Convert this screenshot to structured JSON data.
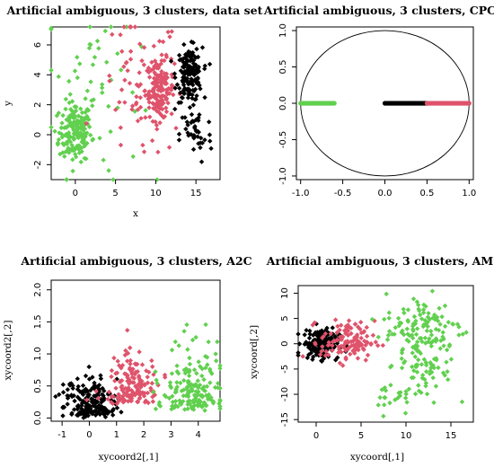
{
  "colors": {
    "black": "#000000",
    "pink": "#DF536B",
    "green": "#61D04F",
    "axis": "#000000"
  },
  "chart_data": [
    {
      "type": "scatter",
      "title": "Artificial ambiguous, 3 clusters, data set",
      "xlabel": "x",
      "ylabel": "y",
      "xlim": [
        -3,
        18
      ],
      "ylim": [
        -3,
        7.2
      ],
      "xticks": [
        0,
        5,
        10,
        15
      ],
      "yticks": [
        -2,
        0,
        2,
        4,
        6
      ],
      "marker": "diamond",
      "series": [
        {
          "color": "green",
          "clusters": [
            [
              0,
              0.2,
              1.0,
              1.0,
              160
            ],
            [
              2,
              3,
              3,
              3.5,
              60
            ]
          ]
        },
        {
          "color": "pink",
          "clusters": [
            [
              10.5,
              3.0,
              0.9,
              1.0,
              140
            ],
            [
              8,
              3,
              2.5,
              2.5,
              70
            ]
          ]
        },
        {
          "color": "black",
          "clusters": [
            [
              14.2,
              4.0,
              0.8,
              0.9,
              160
            ],
            [
              15,
              0,
              1.0,
              1.0,
              40
            ]
          ]
        }
      ]
    },
    {
      "type": "scatter",
      "title": "Artificial ambiguous, 3 clusters, CPC",
      "xlabel": "",
      "ylabel": "",
      "xlim": [
        -1.05,
        1.05
      ],
      "ylim": [
        -1.05,
        1.05
      ],
      "xticks": [
        -1.0,
        -0.5,
        0.0,
        0.5,
        1.0
      ],
      "yticks": [
        -1.0,
        -0.5,
        0.0,
        0.5,
        1.0
      ],
      "circle": {
        "cx": 0,
        "cy": 0,
        "r": 1
      },
      "marker": "circle",
      "series": [
        {
          "color": "green",
          "segment": [
            -1.0,
            -0.6,
            0.0
          ]
        },
        {
          "color": "black",
          "segment": [
            0.0,
            0.5,
            0.0
          ]
        },
        {
          "color": "pink",
          "segment": [
            0.5,
            1.0,
            0.0
          ]
        }
      ]
    },
    {
      "type": "scatter",
      "title": "Artificial ambiguous, 3 clusters, A2C",
      "xlabel": "xycoord2[,1]",
      "ylabel": "xycoord2[,2]",
      "xlim": [
        -1.4,
        4.8
      ],
      "ylim": [
        -0.05,
        2.15
      ],
      "xticks": [
        -1,
        0,
        1,
        2,
        3,
        4
      ],
      "yticks": [
        0.0,
        0.5,
        1.0,
        1.5,
        2.0
      ],
      "marker": "diamond",
      "series": [
        {
          "color": "black",
          "clusters": [
            [
              0.0,
              0.3,
              0.5,
              0.3,
              180
            ]
          ]
        },
        {
          "color": "pink",
          "clusters": [
            [
              1.6,
              0.5,
              0.45,
              0.4,
              150
            ]
          ]
        },
        {
          "color": "green",
          "clusters": [
            [
              3.8,
              0.4,
              0.55,
              0.5,
              170
            ]
          ]
        }
      ]
    },
    {
      "type": "scatter",
      "title": "Artificial ambiguous, 3 clusters, AM",
      "xlabel": "xycoord[,1]",
      "ylabel": "xycoord[,2]",
      "xlim": [
        -2,
        17.5
      ],
      "ylim": [
        -15.5,
        11.5
      ],
      "xticks": [
        0,
        5,
        10,
        15
      ],
      "yticks": [
        -15,
        -10,
        -5,
        0,
        5,
        10
      ],
      "marker": "diamond",
      "series": [
        {
          "color": "black",
          "clusters": [
            [
              0.5,
              0.0,
              1.0,
              1.5,
              160
            ]
          ]
        },
        {
          "color": "pink",
          "clusters": [
            [
              3.5,
              0.5,
              1.5,
              2.0,
              120
            ]
          ]
        },
        {
          "color": "green",
          "clusters": [
            [
              12,
              3,
              2.2,
              3.5,
              120
            ],
            [
              12,
              -5,
              1.5,
              3,
              60
            ],
            [
              9,
              -10,
              1.5,
              2,
              20
            ]
          ]
        }
      ]
    }
  ]
}
